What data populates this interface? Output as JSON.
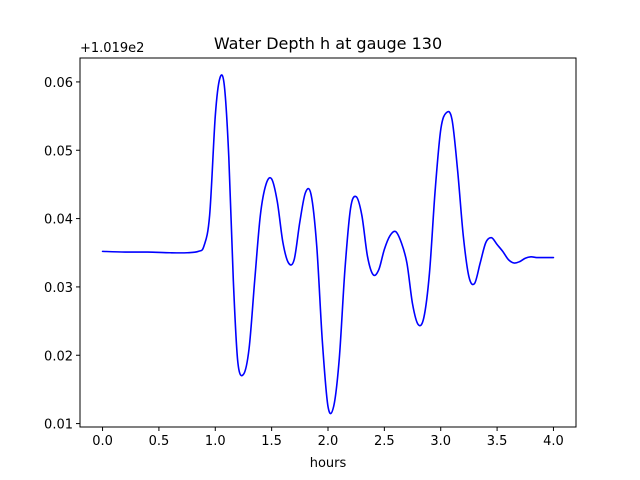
{
  "chart_data": {
    "type": "line",
    "title": "Water Depth h at gauge 130",
    "xlabel": "hours",
    "ylabel": "",
    "y_offset_label": "+1.019e2",
    "xlim": [
      -0.2,
      4.2
    ],
    "ylim": [
      0.0095,
      0.0635
    ],
    "x_ticks": [
      0.0,
      0.5,
      1.0,
      1.5,
      2.0,
      2.5,
      3.0,
      3.5,
      4.0
    ],
    "x_tick_labels": [
      "0.0",
      "0.5",
      "1.0",
      "1.5",
      "2.0",
      "2.5",
      "3.0",
      "3.5",
      "4.0"
    ],
    "y_ticks": [
      0.01,
      0.02,
      0.03,
      0.04,
      0.05,
      0.06
    ],
    "y_tick_labels": [
      "0.01",
      "0.02",
      "0.03",
      "0.04",
      "0.05",
      "0.06"
    ],
    "grid": false,
    "series": [
      {
        "color": "#0000ff",
        "x": [
          0.0,
          0.2,
          0.4,
          0.6,
          0.75,
          0.85,
          0.9,
          0.95,
          1.0,
          1.04,
          1.08,
          1.12,
          1.16,
          1.2,
          1.25,
          1.3,
          1.35,
          1.4,
          1.45,
          1.5,
          1.55,
          1.6,
          1.65,
          1.7,
          1.75,
          1.8,
          1.85,
          1.9,
          1.95,
          2.0,
          2.05,
          2.1,
          2.15,
          2.2,
          2.25,
          2.3,
          2.35,
          2.4,
          2.45,
          2.5,
          2.55,
          2.6,
          2.65,
          2.7,
          2.75,
          2.8,
          2.85,
          2.9,
          2.95,
          3.0,
          3.05,
          3.1,
          3.15,
          3.2,
          3.25,
          3.3,
          3.35,
          3.4,
          3.45,
          3.5,
          3.55,
          3.6,
          3.65,
          3.7,
          3.75,
          3.8,
          3.85,
          3.9,
          3.95,
          4.0
        ],
        "y": [
          0.0352,
          0.0351,
          0.0351,
          0.035,
          0.035,
          0.0352,
          0.036,
          0.0405,
          0.055,
          0.0605,
          0.0595,
          0.049,
          0.031,
          0.019,
          0.0172,
          0.021,
          0.031,
          0.0405,
          0.045,
          0.0458,
          0.0425,
          0.0365,
          0.0335,
          0.034,
          0.0395,
          0.0438,
          0.0435,
          0.036,
          0.022,
          0.0125,
          0.0125,
          0.0195,
          0.0325,
          0.0415,
          0.0432,
          0.0405,
          0.0345,
          0.0318,
          0.0325,
          0.0355,
          0.0375,
          0.0381,
          0.0365,
          0.0335,
          0.0275,
          0.0245,
          0.0255,
          0.032,
          0.044,
          0.053,
          0.0555,
          0.0545,
          0.047,
          0.0375,
          0.0315,
          0.0305,
          0.0335,
          0.0365,
          0.0372,
          0.0362,
          0.0352,
          0.034,
          0.0335,
          0.0337,
          0.0342,
          0.0344,
          0.0343,
          0.0343,
          0.0343,
          0.0343
        ]
      }
    ]
  }
}
